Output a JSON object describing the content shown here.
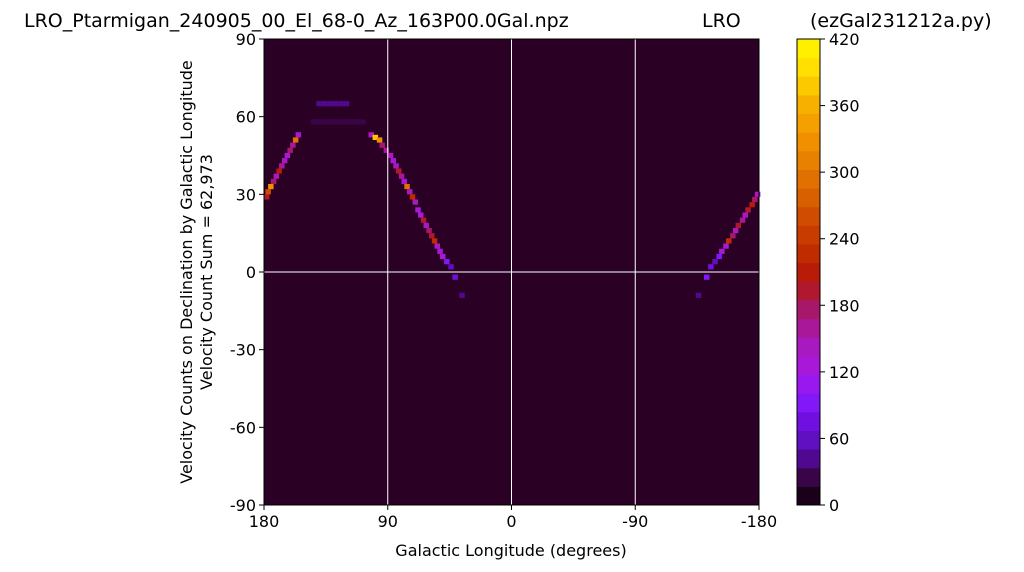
{
  "header": {
    "filename": "LRO_Ptarmigan_240905_00_El_68-0_Az_163P00.0Gal.npz",
    "station": "LRO",
    "script": "(ezGal231212a.py)"
  },
  "chart_data": {
    "type": "heatmap",
    "title": "LRO_Ptarmigan_240905_00_El_68-0_Az_163P00.0Gal.npz LRO (ezGal231212a.py)",
    "xlabel": "Galactic Longitude (degrees)",
    "ylabel_line1": "Velocity Counts on Declination by Galactic Longitude",
    "ylabel_line2": "Velocity Count Sum = 62,973",
    "xlim": [
      180,
      -180
    ],
    "ylim": [
      -90,
      90
    ],
    "xticks": [
      180,
      90,
      0,
      -90,
      -180
    ],
    "xtick_labels": [
      "180",
      "90",
      "0",
      "-90",
      "-180"
    ],
    "yticks": [
      90,
      60,
      30,
      0,
      -30,
      -60,
      -90
    ],
    "ytick_labels": [
      "90",
      "60",
      "30",
      "0",
      "-30",
      "-60",
      "-90"
    ],
    "background_color": "#2a0024",
    "gridlines_x": [
      90,
      0,
      -90
    ],
    "gridlines_y": [
      0
    ],
    "colorbar": {
      "min": 0,
      "max": 420,
      "ticks": [
        0,
        60,
        120,
        180,
        240,
        300,
        360,
        420
      ],
      "tick_labels": [
        "0",
        "60",
        "120",
        "180",
        "240",
        "300",
        "360",
        "420"
      ],
      "colors": [
        "#1a0018",
        "#3a0548",
        "#500890",
        "#6010c0",
        "#7010e0",
        "#8218f8",
        "#9a18f0",
        "#a818d8",
        "#a81ac0",
        "#a81898",
        "#a8186a",
        "#b01830",
        "#b81c08",
        "#c02c00",
        "#c83c00",
        "#d04c00",
        "#d86000",
        "#e07000",
        "#e88000",
        "#f09000",
        "#f4a000",
        "#f8b000",
        "#fcc800",
        "#ffe000",
        "#fff000"
      ]
    },
    "cells": [
      [
        178,
        29,
        200
      ],
      [
        177,
        31,
        260
      ],
      [
        175,
        33,
        330
      ],
      [
        173,
        35,
        180
      ],
      [
        171,
        37,
        140
      ],
      [
        169,
        39,
        210
      ],
      [
        167,
        41,
        160
      ],
      [
        165,
        43,
        150
      ],
      [
        163,
        45,
        120
      ],
      [
        161,
        47,
        180
      ],
      [
        159,
        49,
        160
      ],
      [
        157,
        51,
        300
      ],
      [
        155,
        53,
        120
      ],
      [
        140,
        65,
        40
      ],
      [
        136,
        65,
        40
      ],
      [
        132,
        65,
        40
      ],
      [
        128,
        65,
        40
      ],
      [
        124,
        65,
        40
      ],
      [
        120,
        65,
        40
      ],
      [
        144,
        58,
        30
      ],
      [
        140,
        58,
        30
      ],
      [
        136,
        58,
        30
      ],
      [
        132,
        58,
        30
      ],
      [
        128,
        58,
        30
      ],
      [
        124,
        58,
        30
      ],
      [
        120,
        58,
        30
      ],
      [
        116,
        58,
        30
      ],
      [
        112,
        58,
        30
      ],
      [
        108,
        58,
        30
      ],
      [
        102,
        53,
        140
      ],
      [
        99,
        52,
        380
      ],
      [
        96,
        51,
        320
      ],
      [
        94,
        49,
        180
      ],
      [
        91,
        47,
        160
      ],
      [
        88,
        45,
        150
      ],
      [
        86,
        43,
        120
      ],
      [
        84,
        41,
        140
      ],
      [
        82,
        39,
        190
      ],
      [
        80,
        37,
        160
      ],
      [
        78,
        35,
        120
      ],
      [
        76,
        33,
        300
      ],
      [
        74,
        31,
        140
      ],
      [
        72,
        29,
        220
      ],
      [
        70,
        27,
        150
      ],
      [
        68,
        24,
        130
      ],
      [
        66,
        22,
        120
      ],
      [
        64,
        20,
        200
      ],
      [
        62,
        18,
        140
      ],
      [
        60,
        16,
        170
      ],
      [
        58,
        14,
        200
      ],
      [
        56,
        12,
        230
      ],
      [
        54,
        10,
        150
      ],
      [
        52,
        8,
        120
      ],
      [
        50,
        6,
        130
      ],
      [
        47,
        4,
        100
      ],
      [
        44,
        2,
        60
      ],
      [
        41,
        -2,
        70
      ],
      [
        36,
        -9,
        40
      ],
      [
        -136,
        -9,
        40
      ],
      [
        -142,
        -2,
        90
      ],
      [
        -145,
        2,
        80
      ],
      [
        -148,
        4,
        60
      ],
      [
        -151,
        6,
        90
      ],
      [
        -153,
        8,
        120
      ],
      [
        -156,
        10,
        130
      ],
      [
        -158,
        12,
        230
      ],
      [
        -161,
        14,
        180
      ],
      [
        -163,
        16,
        150
      ],
      [
        -165,
        18,
        200
      ],
      [
        -168,
        20,
        160
      ],
      [
        -170,
        22,
        140
      ],
      [
        -172,
        24,
        190
      ],
      [
        -175,
        26,
        210
      ],
      [
        -177,
        28,
        170
      ],
      [
        -179,
        30,
        140
      ]
    ]
  }
}
